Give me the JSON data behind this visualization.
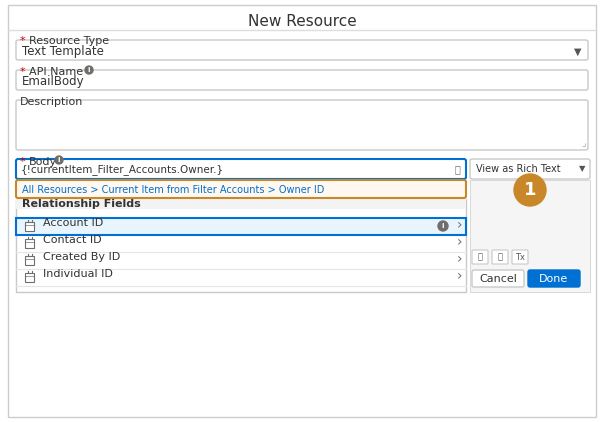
{
  "title": "New Resource",
  "bg_color": "#ffffff",
  "border_color": "#dddddd",
  "panel_bg": "#ffffff",
  "resource_type_label": "* Resource Type",
  "resource_type_value": "Text Template",
  "api_name_label": "* API Name",
  "api_name_info": true,
  "api_name_value": "EmailBody",
  "description_label": "Description",
  "body_label": "* Body",
  "body_info": true,
  "body_value": "{!currentItem_Filter_Accounts.Owner.}",
  "body_placeholder_color": "#333333",
  "breadcrumb_text": "All Resources > Current Item from Filter Accounts > Owner ID",
  "breadcrumb_color": "#0070d2",
  "breadcrumb_border": "#c8882a",
  "view_button_text": "View as Rich Text",
  "section_label": "Relationship Fields",
  "fields": [
    "Account ID",
    "Contact ID",
    "Created By ID",
    "Individual ID"
  ],
  "selected_field_index": 0,
  "selected_field_bg": "#e8f0fe",
  "selected_field_border": "#0070d2",
  "callout_number": "1",
  "callout_color": "#c8882a",
  "callout_text_color": "#ffffff",
  "input_border_active": "#0070d2",
  "input_border_normal": "#c9c9c9",
  "dropdown_arrow_color": "#333333",
  "cancel_btn_text": "Cancel",
  "done_btn_text": "Done",
  "done_btn_color": "#0070d2",
  "done_btn_text_color": "#ffffff",
  "cancel_btn_color": "#ffffff",
  "cancel_btn_text_color": "#333333",
  "icon_color": "#706e6b",
  "field_icon_color": "#706e6b",
  "right_panel_bg": "#f3f3f3",
  "info_icon_color": "#706e6b",
  "search_icon_color": "#706e6b"
}
